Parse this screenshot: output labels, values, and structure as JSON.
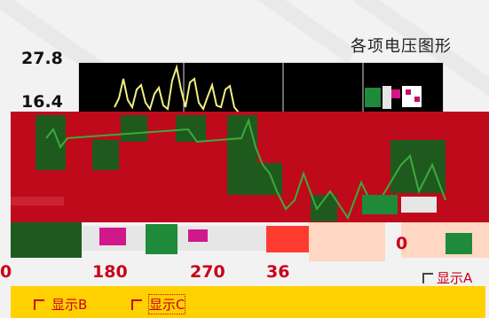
{
  "chart": {
    "title": "各项电压图形",
    "y_top_label": "27.8",
    "y_mid_label": "16.4",
    "x_ticks": [
      "0",
      "180",
      "270",
      "36"
    ]
  },
  "scale_values": {
    "right_value": "0"
  },
  "options": [
    {
      "id": "A",
      "label": "显示A",
      "checked": false
    },
    {
      "id": "B",
      "label": "显示B",
      "checked": false
    },
    {
      "id": "C",
      "label": "显示C",
      "checked": false
    }
  ],
  "colors": {
    "plot_bg": "#000000",
    "trace": "#f0f080",
    "band_red": "#bf0a1c",
    "block_green": "#1e5a1e",
    "footer_yellow": "#ffd100",
    "label_red": "#c8001a"
  }
}
